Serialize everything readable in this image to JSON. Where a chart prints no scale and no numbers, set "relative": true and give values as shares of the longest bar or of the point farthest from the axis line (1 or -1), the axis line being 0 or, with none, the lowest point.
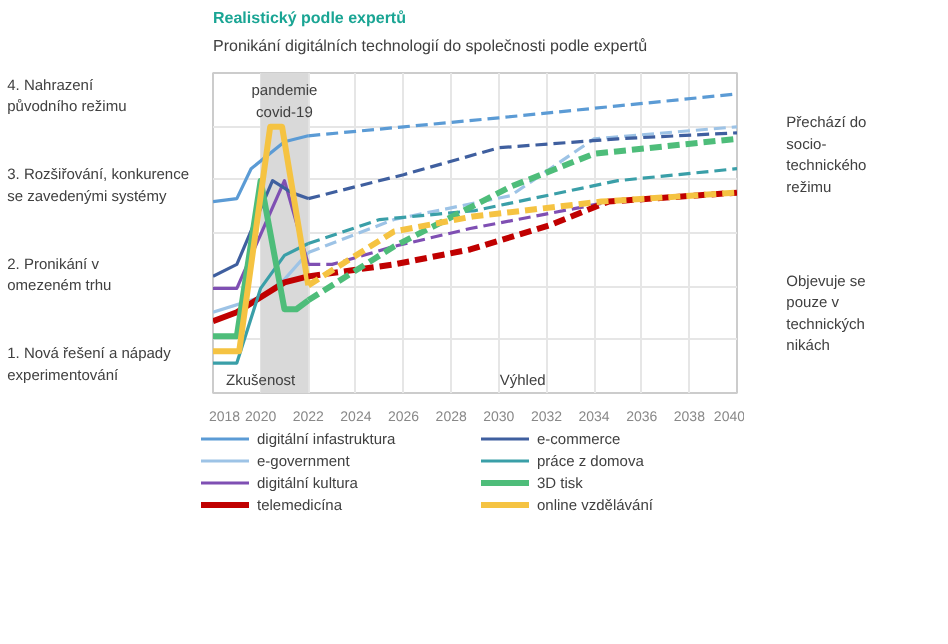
{
  "chart_data": {
    "type": "line",
    "title": "Realistický podle expertů",
    "subtitle": "Pronikání digitálních technologií do společnosti podle expertů",
    "relative": true,
    "xlim": [
      2018,
      2040
    ],
    "xticks": [
      2018,
      2020,
      2022,
      2024,
      2026,
      2028,
      2030,
      2032,
      2034,
      2036,
      2038,
      2040
    ],
    "grid": true,
    "legend": "bottom",
    "bands": [
      {
        "axis": "x",
        "from": 2020,
        "to": 2022,
        "label": "pandemie\ncovid-19",
        "color": "#d9d9d9"
      }
    ],
    "annotations": [
      "1. Nová řešení a nápady\nexperimentování",
      "2. Pronikání v\nomezeném trhu",
      "3. Rozšiřování, konkurence\nse zavedenými systémy",
      "4. Nahrazení\npůvodního režimu",
      "Přechází do\nsocio-\ntechnického\nrežimu",
      "Objevuje se\npouze v\ntechnických\nnikách",
      "Zkušenost",
      "Výhled"
    ],
    "series": [
      {
        "name": "digitální infastruktura",
        "color": "#5b9bd5",
        "line_style": "solid",
        "x": [
          2018,
          2019,
          2019.6,
          2021,
          2022
        ],
        "values": [
          0.64,
          0.65,
          0.75,
          0.84,
          0.86
        ]
      },
      {
        "name": "e-government",
        "color": "#9dc3e6",
        "line_style": "solid",
        "x": [
          2018,
          2020,
          2021,
          2022
        ],
        "values": [
          0.27,
          0.32,
          0.38,
          0.47
        ]
      },
      {
        "name": "digitální kultura",
        "color": "#7f4fb3",
        "line_style": "solid",
        "x": [
          2018,
          2019,
          2021,
          2022
        ],
        "values": [
          0.35,
          0.35,
          0.71,
          0.43
        ]
      },
      {
        "name": "telemedicína",
        "color": "#c00000",
        "line_style": "solid",
        "x": [
          2018,
          2019,
          2020,
          2021,
          2022
        ],
        "values": [
          0.24,
          0.27,
          0.32,
          0.37,
          0.39
        ]
      },
      {
        "name": "e-commerce",
        "color": "#3f5f9f",
        "line_style": "solid",
        "x": [
          2018,
          2019,
          2020.5,
          2021.3,
          2022
        ],
        "values": [
          0.39,
          0.43,
          0.71,
          0.67,
          0.65
        ]
      },
      {
        "name": "práce z domova",
        "color": "#3a9fa8",
        "line_style": "solid",
        "x": [
          2018,
          2019,
          2020,
          2021,
          2022
        ],
        "values": [
          0.1,
          0.1,
          0.35,
          0.46,
          0.5
        ]
      },
      {
        "name": "3D tisk",
        "color": "#4ebd7a",
        "line_style": "solid",
        "x": [
          2018,
          2019,
          2020,
          2021,
          2021.5,
          2022
        ],
        "values": [
          0.19,
          0.19,
          0.71,
          0.28,
          0.28,
          0.31
        ]
      },
      {
        "name": "online vzdělávání",
        "color": "#f5c342",
        "line_style": "solid",
        "x": [
          2018,
          2019.1,
          2020.4,
          2020.9,
          2022
        ],
        "values": [
          0.14,
          0.14,
          0.89,
          0.89,
          0.36
        ]
      },
      {
        "color": "#5b9bd5",
        "line_style": "dashed",
        "x": [
          2022,
          2026,
          2030,
          2035,
          2040
        ],
        "values": [
          0.86,
          0.89,
          0.92,
          0.96,
          1.0
        ]
      },
      {
        "color": "#9dc3e6",
        "line_style": "dashed",
        "x": [
          2022,
          2025.6,
          2030.5,
          2034,
          2040
        ],
        "values": [
          0.47,
          0.58,
          0.66,
          0.85,
          0.89
        ]
      },
      {
        "color": "#7f4fb3",
        "line_style": "dashed",
        "x": [
          2022,
          2023,
          2025.6,
          2028.8,
          2034.7,
          2040
        ],
        "values": [
          0.43,
          0.43,
          0.49,
          0.55,
          0.64,
          0.67
        ]
      },
      {
        "color": "#c00000",
        "line_style": "dashed",
        "x": [
          2022,
          2025.6,
          2028.8,
          2032.1,
          2034.6,
          2040
        ],
        "values": [
          0.39,
          0.43,
          0.48,
          0.56,
          0.64,
          0.67
        ]
      },
      {
        "color": "#3f5f9f",
        "line_style": "dashed",
        "x": [
          2022,
          2026,
          2030,
          2035,
          2040
        ],
        "values": [
          0.65,
          0.73,
          0.82,
          0.85,
          0.87
        ]
      },
      {
        "color": "#3a9fa8",
        "line_style": "dashed",
        "x": [
          2022,
          2025,
          2029,
          2035,
          2040
        ],
        "values": [
          0.5,
          0.58,
          0.61,
          0.71,
          0.75
        ]
      },
      {
        "color": "#4ebd7a",
        "line_style": "dashed",
        "x": [
          2022,
          2025.6,
          2030.5,
          2034,
          2040
        ],
        "values": [
          0.31,
          0.49,
          0.69,
          0.8,
          0.85
        ]
      },
      {
        "color": "#f5c342",
        "line_style": "dashed",
        "x": [
          2022,
          2025.6,
          2028.9,
          2034.3,
          2040
        ],
        "values": [
          0.36,
          0.54,
          0.59,
          0.64,
          0.67
        ]
      }
    ]
  }
}
